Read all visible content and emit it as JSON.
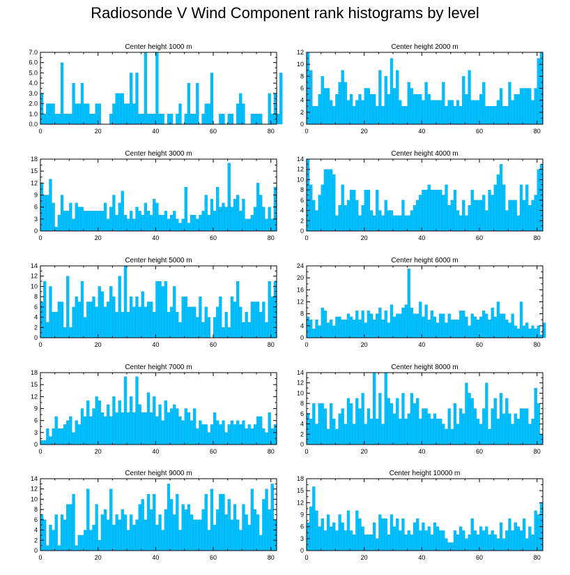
{
  "title": "Radiosonde V Wind Component rank histograms by level",
  "colors": {
    "bar": "#00BFFF",
    "bar_stroke": "#0099CC",
    "axis": "#000000"
  },
  "chart_data": [
    {
      "type": "bar",
      "title": "Center height 1000 m",
      "xlim": [
        0,
        82
      ],
      "ylim": [
        0,
        7
      ],
      "xticks": [
        0,
        20,
        40,
        60,
        80
      ],
      "yticks": [
        "0.0",
        "1.0",
        "2.0",
        "3.0",
        "4.0",
        "5.0",
        "6.0",
        "7.0"
      ],
      "values": [
        3,
        1,
        2,
        2,
        2,
        1,
        1,
        6,
        1,
        1,
        1,
        4,
        2,
        2,
        4,
        2,
        2,
        1,
        1,
        2,
        2,
        0,
        0,
        0,
        1,
        2,
        3,
        3,
        3,
        2,
        2,
        5,
        2,
        5,
        1,
        1,
        7,
        1,
        1,
        1,
        7,
        1,
        1,
        0,
        1,
        1,
        0,
        1,
        2,
        0,
        1,
        4,
        1,
        1,
        4,
        0,
        1,
        2,
        2,
        5,
        0,
        0,
        1,
        1,
        0,
        1,
        1,
        0,
        2,
        3,
        2,
        0,
        0,
        1,
        1,
        1,
        1,
        0,
        0,
        3,
        1,
        3,
        1,
        5
      ]
    },
    {
      "type": "bar",
      "title": "Center height 2000 m",
      "xlim": [
        0,
        82
      ],
      "ylim": [
        0,
        12
      ],
      "xticks": [
        0,
        20,
        40,
        60,
        80
      ],
      "yticks": [
        "0",
        "2",
        "4",
        "6",
        "8",
        "10",
        "12"
      ],
      "values": [
        12,
        9,
        3,
        3,
        5,
        8,
        6,
        6,
        4,
        3,
        5,
        7,
        9,
        7,
        4,
        5,
        3,
        4,
        5,
        4,
        6,
        6,
        5,
        5,
        3,
        9,
        3,
        8,
        5,
        11,
        6,
        9,
        4,
        3,
        3,
        7,
        6,
        5,
        5,
        5,
        4,
        7,
        5,
        4,
        4,
        4,
        4,
        7,
        3,
        4,
        4,
        3,
        4,
        3,
        8,
        5,
        9,
        4,
        4,
        4,
        5,
        7,
        3,
        3,
        3,
        3,
        4,
        6,
        3,
        3,
        7,
        4,
        5,
        5,
        6,
        6,
        6,
        6,
        4,
        6,
        11,
        12
      ]
    },
    {
      "type": "bar",
      "title": "Center height 3000 m",
      "xlim": [
        0,
        82
      ],
      "ylim": [
        0,
        18
      ],
      "xticks": [
        0,
        20,
        40,
        60,
        80
      ],
      "yticks": [
        "0",
        "3",
        "6",
        "9",
        "12",
        "15",
        "18"
      ],
      "values": [
        12,
        9,
        9,
        13,
        7,
        1,
        4,
        9,
        5,
        5,
        7,
        3,
        7,
        6,
        6,
        5,
        5,
        5,
        5,
        5,
        5,
        5,
        7,
        3,
        6,
        9,
        4,
        7,
        10,
        4,
        3,
        5,
        3,
        6,
        5,
        4,
        7,
        5,
        4,
        8,
        7,
        4,
        4,
        5,
        3,
        4,
        5,
        3,
        2,
        3,
        11,
        2,
        4,
        4,
        3,
        4,
        5,
        9,
        4,
        8,
        5,
        11,
        6,
        7,
        6,
        17,
        6,
        8,
        9,
        5,
        8,
        3,
        3,
        4,
        6,
        12,
        9,
        6,
        3,
        6,
        3,
        11
      ]
    },
    {
      "type": "bar",
      "title": "Center height 4000 m",
      "xlim": [
        0,
        82
      ],
      "ylim": [
        0,
        14
      ],
      "xticks": [
        0,
        20,
        40,
        60,
        80
      ],
      "yticks": [
        "0",
        "2",
        "4",
        "6",
        "8",
        "10",
        "12",
        "14"
      ],
      "values": [
        14,
        9,
        6,
        4,
        7,
        9,
        12,
        12,
        12,
        11,
        3,
        5,
        9,
        5,
        6,
        8,
        8,
        6,
        3,
        5,
        8,
        8,
        4,
        3,
        8,
        4,
        3,
        6,
        4,
        4,
        3,
        3,
        3,
        6,
        3,
        3,
        4,
        5,
        6,
        7,
        8,
        8,
        9,
        8,
        8,
        8,
        8,
        7,
        9,
        5,
        6,
        8,
        4,
        3,
        6,
        3,
        5,
        8,
        6,
        6,
        6,
        7,
        4,
        8,
        7,
        9,
        11,
        13,
        9,
        4,
        6,
        6,
        6,
        3,
        9,
        6,
        9,
        5,
        6,
        7,
        12,
        13
      ]
    },
    {
      "type": "bar",
      "title": "Center height 5000 m",
      "xlim": [
        0,
        82
      ],
      "ylim": [
        0,
        14
      ],
      "xticks": [
        0,
        20,
        40,
        60,
        80
      ],
      "yticks": [
        "0",
        "2",
        "4",
        "6",
        "8",
        "10",
        "12",
        "14"
      ],
      "values": [
        7,
        11,
        3,
        10,
        5,
        5,
        7,
        7,
        2,
        12,
        2,
        6,
        8,
        7,
        11,
        4,
        7,
        7,
        8,
        6,
        10,
        9,
        6,
        7,
        10,
        8,
        5,
        12,
        5,
        14,
        5,
        8,
        6,
        8,
        6,
        9,
        6,
        7,
        7,
        5,
        11,
        11,
        10,
        11,
        5,
        6,
        10,
        5,
        3,
        8,
        8,
        6,
        6,
        6,
        4,
        8,
        3,
        6,
        4,
        0,
        4,
        6,
        8,
        2,
        5,
        2,
        8,
        7,
        11,
        6,
        3,
        5,
        3,
        7,
        7,
        7,
        5,
        7,
        3,
        11,
        8,
        11
      ]
    },
    {
      "type": "bar",
      "title": "Center height 6000 m",
      "xlim": [
        0,
        82
      ],
      "ylim": [
        0,
        24
      ],
      "xticks": [
        0,
        20,
        40,
        60,
        80
      ],
      "yticks": [
        "0",
        "4",
        "8",
        "12",
        "16",
        "20",
        "24"
      ],
      "values": [
        7,
        6,
        3,
        6,
        4,
        10,
        9,
        5,
        6,
        4,
        7,
        7,
        6,
        6,
        8,
        7,
        6,
        9,
        6,
        9,
        5,
        9,
        8,
        6,
        8,
        10,
        6,
        9,
        5,
        11,
        7,
        8,
        8,
        10,
        11,
        23,
        10,
        8,
        8,
        12,
        7,
        11,
        6,
        9,
        7,
        5,
        8,
        8,
        5,
        8,
        6,
        6,
        6,
        9,
        9,
        7,
        4,
        8,
        7,
        6,
        7,
        9,
        8,
        6,
        10,
        7,
        12,
        8,
        8,
        6,
        5,
        8,
        4,
        3,
        12,
        4,
        5,
        3,
        4,
        3,
        4,
        1,
        5
      ]
    },
    {
      "type": "bar",
      "title": "Center height 7000 m",
      "xlim": [
        0,
        82
      ],
      "ylim": [
        0,
        18
      ],
      "xticks": [
        0,
        20,
        40,
        60,
        80
      ],
      "yticks": [
        "0",
        "3",
        "6",
        "9",
        "12",
        "15",
        "18"
      ],
      "values": [
        1,
        1,
        4,
        2,
        4,
        7,
        4,
        4,
        5,
        6,
        7,
        3,
        6,
        5,
        9,
        7,
        11,
        7,
        9,
        12,
        11,
        8,
        7,
        10,
        7,
        12,
        8,
        11,
        8,
        17,
        8,
        12,
        8,
        17,
        10,
        8,
        8,
        13,
        8,
        12,
        7,
        10,
        6,
        11,
        8,
        9,
        10,
        9,
        7,
        6,
        9,
        8,
        6,
        9,
        4,
        6,
        5,
        5,
        3,
        5,
        8,
        6,
        5,
        6,
        3,
        5,
        6,
        5,
        6,
        5,
        6,
        4,
        5,
        4,
        5,
        7,
        7,
        4,
        3,
        8,
        4,
        5
      ]
    },
    {
      "type": "bar",
      "title": "Center height 8000 m",
      "xlim": [
        0,
        82
      ],
      "ylim": [
        0,
        14
      ],
      "xticks": [
        0,
        20,
        40,
        60,
        80
      ],
      "yticks": [
        "0",
        "2",
        "4",
        "6",
        "8",
        "10",
        "12",
        "14"
      ],
      "values": [
        6,
        5,
        8,
        4,
        8,
        8,
        7,
        3,
        8,
        5,
        3,
        6,
        7,
        4,
        9,
        8,
        4,
        9,
        7,
        10,
        4,
        7,
        5,
        14,
        5,
        10,
        4,
        14,
        9,
        8,
        6,
        9,
        5,
        10,
        5,
        6,
        10,
        8,
        9,
        5,
        7,
        7,
        6,
        5,
        6,
        5,
        5,
        4,
        3,
        7,
        3,
        8,
        4,
        7,
        6,
        12,
        10,
        9,
        7,
        5,
        4,
        7,
        12,
        3,
        7,
        9,
        5,
        10,
        6,
        9,
        6,
        4,
        6,
        5,
        7,
        7,
        7,
        4,
        5,
        11,
        8,
        2
      ]
    },
    {
      "type": "bar",
      "title": "Center height 9000 m",
      "xlim": [
        0,
        82
      ],
      "ylim": [
        0,
        14
      ],
      "xticks": [
        0,
        20,
        40,
        60,
        80
      ],
      "yticks": [
        "0",
        "2",
        "4",
        "6",
        "8",
        "10",
        "12",
        "14"
      ],
      "values": [
        7,
        6,
        1,
        5,
        4,
        7,
        1,
        7,
        6,
        9,
        9,
        11,
        1,
        3,
        3,
        4,
        12,
        4,
        5,
        9,
        2,
        7,
        8,
        6,
        12,
        5,
        7,
        6,
        8,
        7,
        4,
        7,
        5,
        6,
        9,
        10,
        6,
        11,
        8,
        11,
        5,
        7,
        4,
        8,
        13,
        10,
        7,
        11,
        4,
        9,
        8,
        9,
        7,
        6,
        6,
        6,
        8,
        11,
        4,
        12,
        5,
        8,
        11,
        11,
        7,
        10,
        6,
        9,
        6,
        4,
        9,
        7,
        5,
        12,
        8,
        7,
        3,
        10,
        12,
        8,
        13,
        6
      ]
    },
    {
      "type": "bar",
      "title": "Center height 10000 m",
      "xlim": [
        0,
        82
      ],
      "ylim": [
        0,
        18
      ],
      "xticks": [
        0,
        20,
        40,
        60,
        80
      ],
      "yticks": [
        "0",
        "3",
        "6",
        "9",
        "12",
        "15",
        "18"
      ],
      "values": [
        7,
        11,
        16,
        10,
        6,
        8,
        5,
        9,
        6,
        7,
        5,
        9,
        7,
        5,
        10,
        5,
        4,
        10,
        8,
        6,
        4,
        4,
        4,
        7,
        3,
        9,
        8,
        8,
        4,
        9,
        6,
        8,
        5,
        8,
        4,
        5,
        4,
        7,
        8,
        5,
        7,
        5,
        6,
        4,
        7,
        6,
        5,
        5,
        3,
        2,
        2,
        5,
        4,
        6,
        5,
        3,
        4,
        8,
        5,
        4,
        6,
        5,
        6,
        4,
        5,
        4,
        3,
        7,
        3,
        5,
        8,
        5,
        7,
        6,
        5,
        8,
        3,
        6,
        4,
        10,
        9,
        12
      ]
    }
  ]
}
